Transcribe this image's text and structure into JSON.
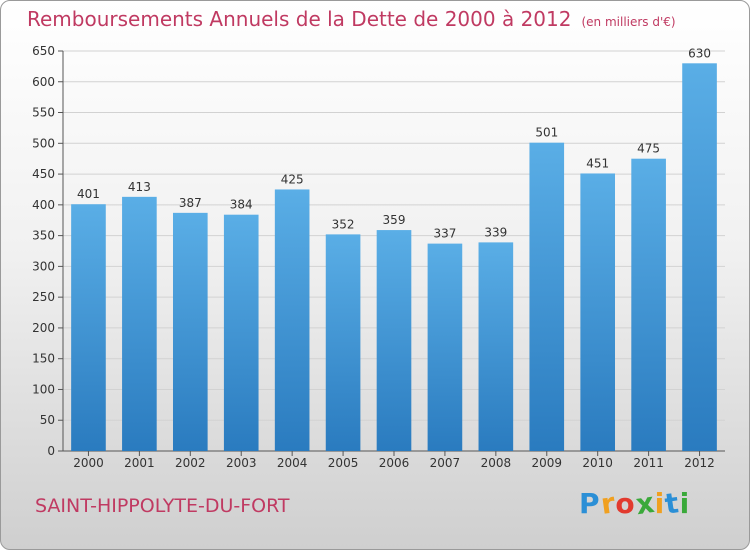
{
  "chart_data": {
    "type": "bar",
    "title": "Remboursements Annuels de la Dette de 2000 à 2012",
    "unit": "(en milliers d'€)",
    "categories": [
      "2000",
      "2001",
      "2002",
      "2003",
      "2004",
      "2005",
      "2006",
      "2007",
      "2008",
      "2009",
      "2010",
      "2011",
      "2012"
    ],
    "values": [
      401,
      413,
      387,
      384,
      425,
      352,
      359,
      337,
      339,
      501,
      451,
      475,
      630
    ],
    "ylim": [
      0,
      650
    ],
    "yticks": [
      0,
      50,
      100,
      150,
      200,
      250,
      300,
      350,
      400,
      450,
      500,
      550,
      600,
      650
    ],
    "grid": true,
    "legend": "none",
    "bar_color_top": "#5aaee6",
    "bar_color_bottom": "#2a7bbf"
  },
  "commune": "SAINT-HIPPOLYTE-DU-FORT",
  "logo": {
    "letters": [
      "P",
      "r",
      "o",
      "x",
      "i",
      "t",
      "i"
    ],
    "colors": [
      "#2b8fd6",
      "#f0a020",
      "#e23a2e",
      "#3aa93a",
      "#f0a020",
      "#2b8fd6",
      "#3aa93a"
    ]
  },
  "colors": {
    "accent": "#c03a62",
    "grid": "#d2d2d2"
  }
}
